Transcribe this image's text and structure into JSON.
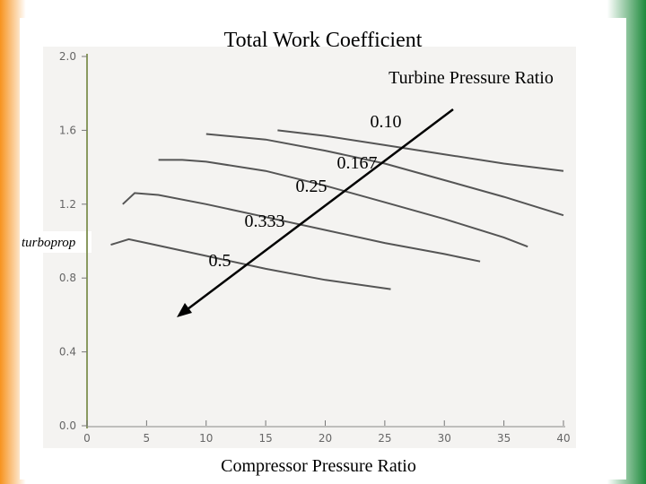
{
  "chart_data": {
    "type": "line",
    "title": "Total Work Coefficient",
    "annotation": "Turbine Pressure Ratio",
    "side_label": "turboprop",
    "x_label": "Compressor Pressure Ratio",
    "xlim": [
      0,
      40
    ],
    "xticks": [
      0,
      5,
      10,
      15,
      20,
      25,
      30,
      35,
      40
    ],
    "ylim": [
      0,
      2.0
    ],
    "yticks": [
      {
        "value": 0,
        "label": "0.0"
      },
      0.4,
      0.8,
      1.2,
      1.6,
      {
        "value": 2,
        "label": "2.0"
      }
    ],
    "series": [
      {
        "name": "0.10",
        "color": "#555555",
        "x": [
          16,
          20,
          25,
          30,
          35,
          40
        ],
        "values": [
          1.6,
          1.57,
          1.52,
          1.47,
          1.42,
          1.38
        ]
      },
      {
        "name": "0.167",
        "color": "#555555",
        "x": [
          10,
          15,
          20,
          25,
          30,
          35,
          40
        ],
        "values": [
          1.58,
          1.55,
          1.49,
          1.42,
          1.33,
          1.24,
          1.14
        ]
      },
      {
        "name": "0.25",
        "color": "#555555",
        "x": [
          6,
          8,
          10,
          15,
          20,
          25,
          30,
          35,
          37
        ],
        "values": [
          1.44,
          1.44,
          1.43,
          1.38,
          1.3,
          1.21,
          1.12,
          1.02,
          0.97
        ]
      },
      {
        "name": "0.333",
        "color": "#555555",
        "x": [
          3,
          4,
          6,
          10,
          15,
          20,
          25,
          30,
          33
        ],
        "values": [
          1.2,
          1.26,
          1.25,
          1.2,
          1.13,
          1.06,
          0.99,
          0.93,
          0.89
        ]
      },
      {
        "name": "0.5",
        "color": "#555555",
        "x": [
          2,
          3.5,
          5,
          10,
          15,
          20,
          25.5
        ],
        "values": [
          0.98,
          1.01,
          0.99,
          0.92,
          0.85,
          0.79,
          0.74
        ]
      }
    ]
  }
}
